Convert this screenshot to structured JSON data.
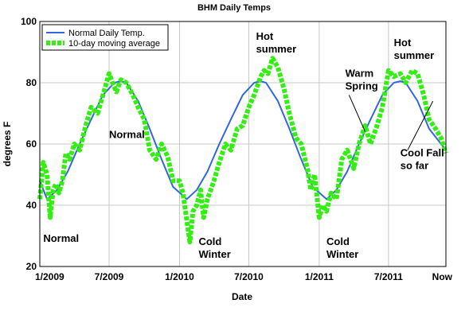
{
  "chart_data": {
    "type": "line",
    "title": "BHM Daily Temps",
    "xlabel": "Date",
    "ylabel": "degrees F",
    "ylim": [
      20,
      100
    ],
    "yticks": [
      20,
      40,
      60,
      80,
      100
    ],
    "xlim": [
      "2009-01-01",
      "2011-11-28"
    ],
    "xticks": [
      {
        "date": "2009-01-01",
        "label": "1/2009"
      },
      {
        "date": "2009-07-01",
        "label": "7/2009"
      },
      {
        "date": "2010-01-01",
        "label": "1/2010"
      },
      {
        "date": "2010-07-01",
        "label": "7/2010"
      },
      {
        "date": "2011-01-01",
        "label": "1/2011"
      },
      {
        "date": "2011-07-01",
        "label": "7/2011"
      },
      {
        "date": "2011-11-28",
        "label": "Now"
      }
    ],
    "grid": "vertical-and-horizontal",
    "legend": "top-left",
    "series": [
      {
        "name": "Normal Daily Temp.",
        "color": "#3366dd",
        "style": "line",
        "x": [
          "2009-01-01",
          "2009-01-20",
          "2009-02-15",
          "2009-03-15",
          "2009-04-15",
          "2009-05-15",
          "2009-06-15",
          "2009-07-15",
          "2009-08-01",
          "2009-08-15",
          "2009-09-15",
          "2009-10-15",
          "2009-11-15",
          "2009-12-15",
          "2010-01-20",
          "2010-02-15",
          "2010-03-15",
          "2010-04-15",
          "2010-05-15",
          "2010-06-15",
          "2010-07-15",
          "2010-08-01",
          "2010-08-15",
          "2010-09-15",
          "2010-10-15",
          "2010-11-15",
          "2010-12-15",
          "2011-01-20",
          "2011-02-15",
          "2011-03-15",
          "2011-04-15",
          "2011-05-15",
          "2011-06-15",
          "2011-07-15",
          "2011-08-01",
          "2011-08-15",
          "2011-09-15",
          "2011-10-15",
          "2011-11-28"
        ],
        "values": [
          48,
          42,
          45,
          51,
          60,
          68,
          76,
          80,
          80.5,
          80,
          74,
          65,
          55,
          46,
          42,
          45,
          51,
          60,
          68,
          76,
          80,
          80.5,
          80,
          74,
          65,
          55,
          46,
          42,
          45,
          51,
          60,
          68,
          76,
          80,
          80.5,
          80,
          74,
          65,
          58
        ]
      },
      {
        "name": "10-day moving average",
        "color": "#33ee11",
        "style": "dotted",
        "x": [
          "2009-01-01",
          "2009-01-10",
          "2009-01-20",
          "2009-01-28",
          "2009-02-05",
          "2009-02-12",
          "2009-02-20",
          "2009-03-01",
          "2009-03-10",
          "2009-03-20",
          "2009-04-01",
          "2009-04-15",
          "2009-05-01",
          "2009-05-15",
          "2009-06-01",
          "2009-06-15",
          "2009-07-01",
          "2009-07-10",
          "2009-07-20",
          "2009-08-01",
          "2009-08-15",
          "2009-09-01",
          "2009-09-15",
          "2009-10-01",
          "2009-10-15",
          "2009-11-01",
          "2009-11-15",
          "2009-12-01",
          "2009-12-15",
          "2010-01-01",
          "2010-01-10",
          "2010-01-20",
          "2010-01-28",
          "2010-02-05",
          "2010-02-15",
          "2010-02-25",
          "2010-03-05",
          "2010-03-15",
          "2010-04-01",
          "2010-04-15",
          "2010-05-01",
          "2010-05-15",
          "2010-06-01",
          "2010-06-15",
          "2010-07-01",
          "2010-07-15",
          "2010-08-01",
          "2010-08-10",
          "2010-08-20",
          "2010-09-01",
          "2010-09-15",
          "2010-10-01",
          "2010-10-15",
          "2010-11-01",
          "2010-11-15",
          "2010-12-01",
          "2010-12-10",
          "2010-12-20",
          "2011-01-01",
          "2011-01-10",
          "2011-01-20",
          "2011-02-01",
          "2011-02-15",
          "2011-03-01",
          "2011-03-15",
          "2011-04-01",
          "2011-04-15",
          "2011-05-01",
          "2011-05-15",
          "2011-06-01",
          "2011-06-15",
          "2011-07-01",
          "2011-07-15",
          "2011-08-01",
          "2011-08-15",
          "2011-09-01",
          "2011-09-15",
          "2011-10-01",
          "2011-10-15",
          "2011-11-01",
          "2011-11-15",
          "2011-11-28"
        ],
        "values": [
          42,
          54,
          50,
          36,
          45,
          47,
          44,
          48,
          57,
          55,
          60,
          58,
          66,
          72,
          70,
          76,
          83,
          80,
          77,
          81,
          80,
          76,
          72,
          68,
          58,
          55,
          60,
          56,
          48,
          48,
          44,
          35,
          28,
          38,
          40,
          45,
          36,
          42,
          48,
          54,
          60,
          58,
          65,
          66,
          72,
          76,
          82,
          84,
          83,
          88,
          85,
          78,
          70,
          62,
          60,
          52,
          45,
          50,
          36,
          40,
          38,
          44,
          42,
          55,
          58,
          52,
          60,
          66,
          60,
          66,
          72,
          84,
          82,
          83,
          80,
          84,
          83,
          76,
          68,
          65,
          62,
          57
        ]
      }
    ],
    "annotations": [
      {
        "lines": [
          "Normal"
        ],
        "date": "2009-01-10",
        "y": 28
      },
      {
        "lines": [
          "Normal"
        ],
        "date": "2009-07-01",
        "y": 62
      },
      {
        "lines": [
          "Cold",
          "Winter"
        ],
        "date": "2010-02-20",
        "y": 27
      },
      {
        "lines": [
          "Hot",
          "summer"
        ],
        "date": "2010-07-20",
        "y": 94
      },
      {
        "lines": [
          "Cold",
          "Winter"
        ],
        "date": "2011-01-20",
        "y": 27
      },
      {
        "lines": [
          "Warm",
          "Spring"
        ],
        "date": "2011-03-10",
        "y": 82
      },
      {
        "lines": [
          "Hot",
          "summer"
        ],
        "date": "2011-07-15",
        "y": 92
      },
      {
        "lines": [
          "Cool Fall",
          "so far"
        ],
        "date": "2011-08-01",
        "y": 56
      }
    ],
    "arrows": [
      {
        "from_date": "2011-03-20",
        "from_y": 76,
        "to_date": "2011-05-01",
        "to_y": 64
      },
      {
        "from_date": "2011-08-20",
        "from_y": 58,
        "to_date": "2011-10-25",
        "to_y": 74
      }
    ]
  }
}
